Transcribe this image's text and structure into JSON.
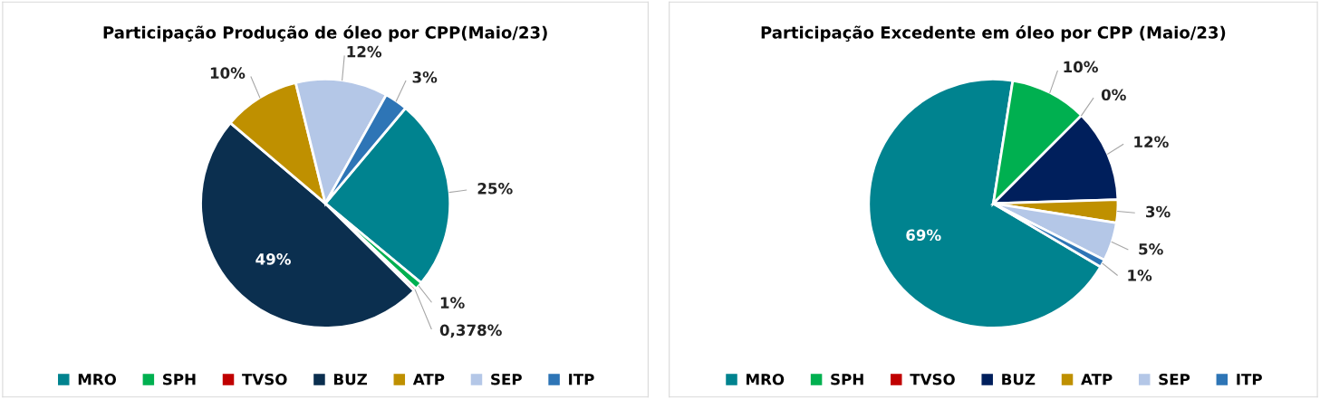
{
  "chart_data": [
    {
      "type": "pie",
      "title": "Participação Produção de óleo por CPP(Maio/23)",
      "categories": [
        "MRO",
        "SPH",
        "TVSO",
        "BUZ",
        "ATP",
        "SEP",
        "ITP"
      ],
      "values": [
        25,
        1,
        0.378,
        49,
        10,
        12,
        3
      ],
      "value_labels": [
        "25%",
        "1%",
        "0,378%",
        "49%",
        "10%",
        "12%",
        "3%"
      ],
      "colors": [
        "#00838f",
        "#00b050",
        "#c00000",
        "#0b2f4f",
        "#bf9000",
        "#b4c7e7",
        "#2e75b6"
      ],
      "legend": "bottom"
    },
    {
      "type": "pie",
      "title": "Participação Excedente em óleo por CPP (Maio/23)",
      "categories": [
        "MRO",
        "SPH",
        "TVSO",
        "BUZ",
        "ATP",
        "SEP",
        "ITP"
      ],
      "values": [
        69,
        10,
        0,
        12,
        3,
        5,
        1
      ],
      "value_labels": [
        "69%",
        "10%",
        "0%",
        "12%",
        "3%",
        "5%",
        "1%"
      ],
      "colors": [
        "#00838f",
        "#00b050",
        "#c00000",
        "#001f5c",
        "#bf9000",
        "#b4c7e7",
        "#2e75b6"
      ],
      "legend": "bottom"
    }
  ]
}
